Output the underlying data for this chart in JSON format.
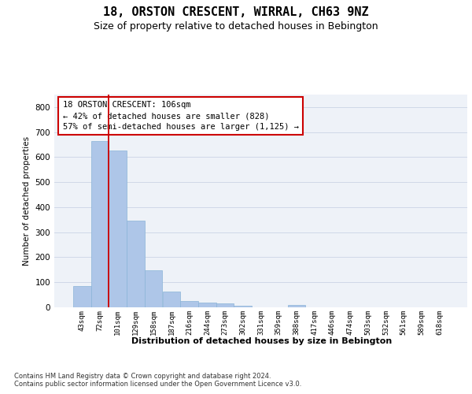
{
  "title": "18, ORSTON CRESCENT, WIRRAL, CH63 9NZ",
  "subtitle": "Size of property relative to detached houses in Bebington",
  "xlabel": "Distribution of detached houses by size in Bebington",
  "ylabel": "Number of detached properties",
  "categories": [
    "43sqm",
    "72sqm",
    "101sqm",
    "129sqm",
    "158sqm",
    "187sqm",
    "216sqm",
    "244sqm",
    "273sqm",
    "302sqm",
    "331sqm",
    "359sqm",
    "388sqm",
    "417sqm",
    "446sqm",
    "474sqm",
    "503sqm",
    "532sqm",
    "561sqm",
    "589sqm",
    "618sqm"
  ],
  "values": [
    85,
    663,
    628,
    345,
    147,
    63,
    25,
    18,
    15,
    7,
    0,
    0,
    8,
    0,
    0,
    0,
    0,
    0,
    0,
    0,
    0
  ],
  "bar_color": "#aec6e8",
  "bar_edge_color": "#8ab4d8",
  "grid_color": "#d0d8e8",
  "background_color": "#eef2f8",
  "vline_color": "#cc0000",
  "vline_x": 1.5,
  "annotation_text": "18 ORSTON CRESCENT: 106sqm\n← 42% of detached houses are smaller (828)\n57% of semi-detached houses are larger (1,125) →",
  "annotation_box_edge_color": "#cc0000",
  "title_fontsize": 11,
  "subtitle_fontsize": 9,
  "footer_text": "Contains HM Land Registry data © Crown copyright and database right 2024.\nContains public sector information licensed under the Open Government Licence v3.0.",
  "ylim": [
    0,
    850
  ],
  "yticks": [
    0,
    100,
    200,
    300,
    400,
    500,
    600,
    700,
    800
  ]
}
